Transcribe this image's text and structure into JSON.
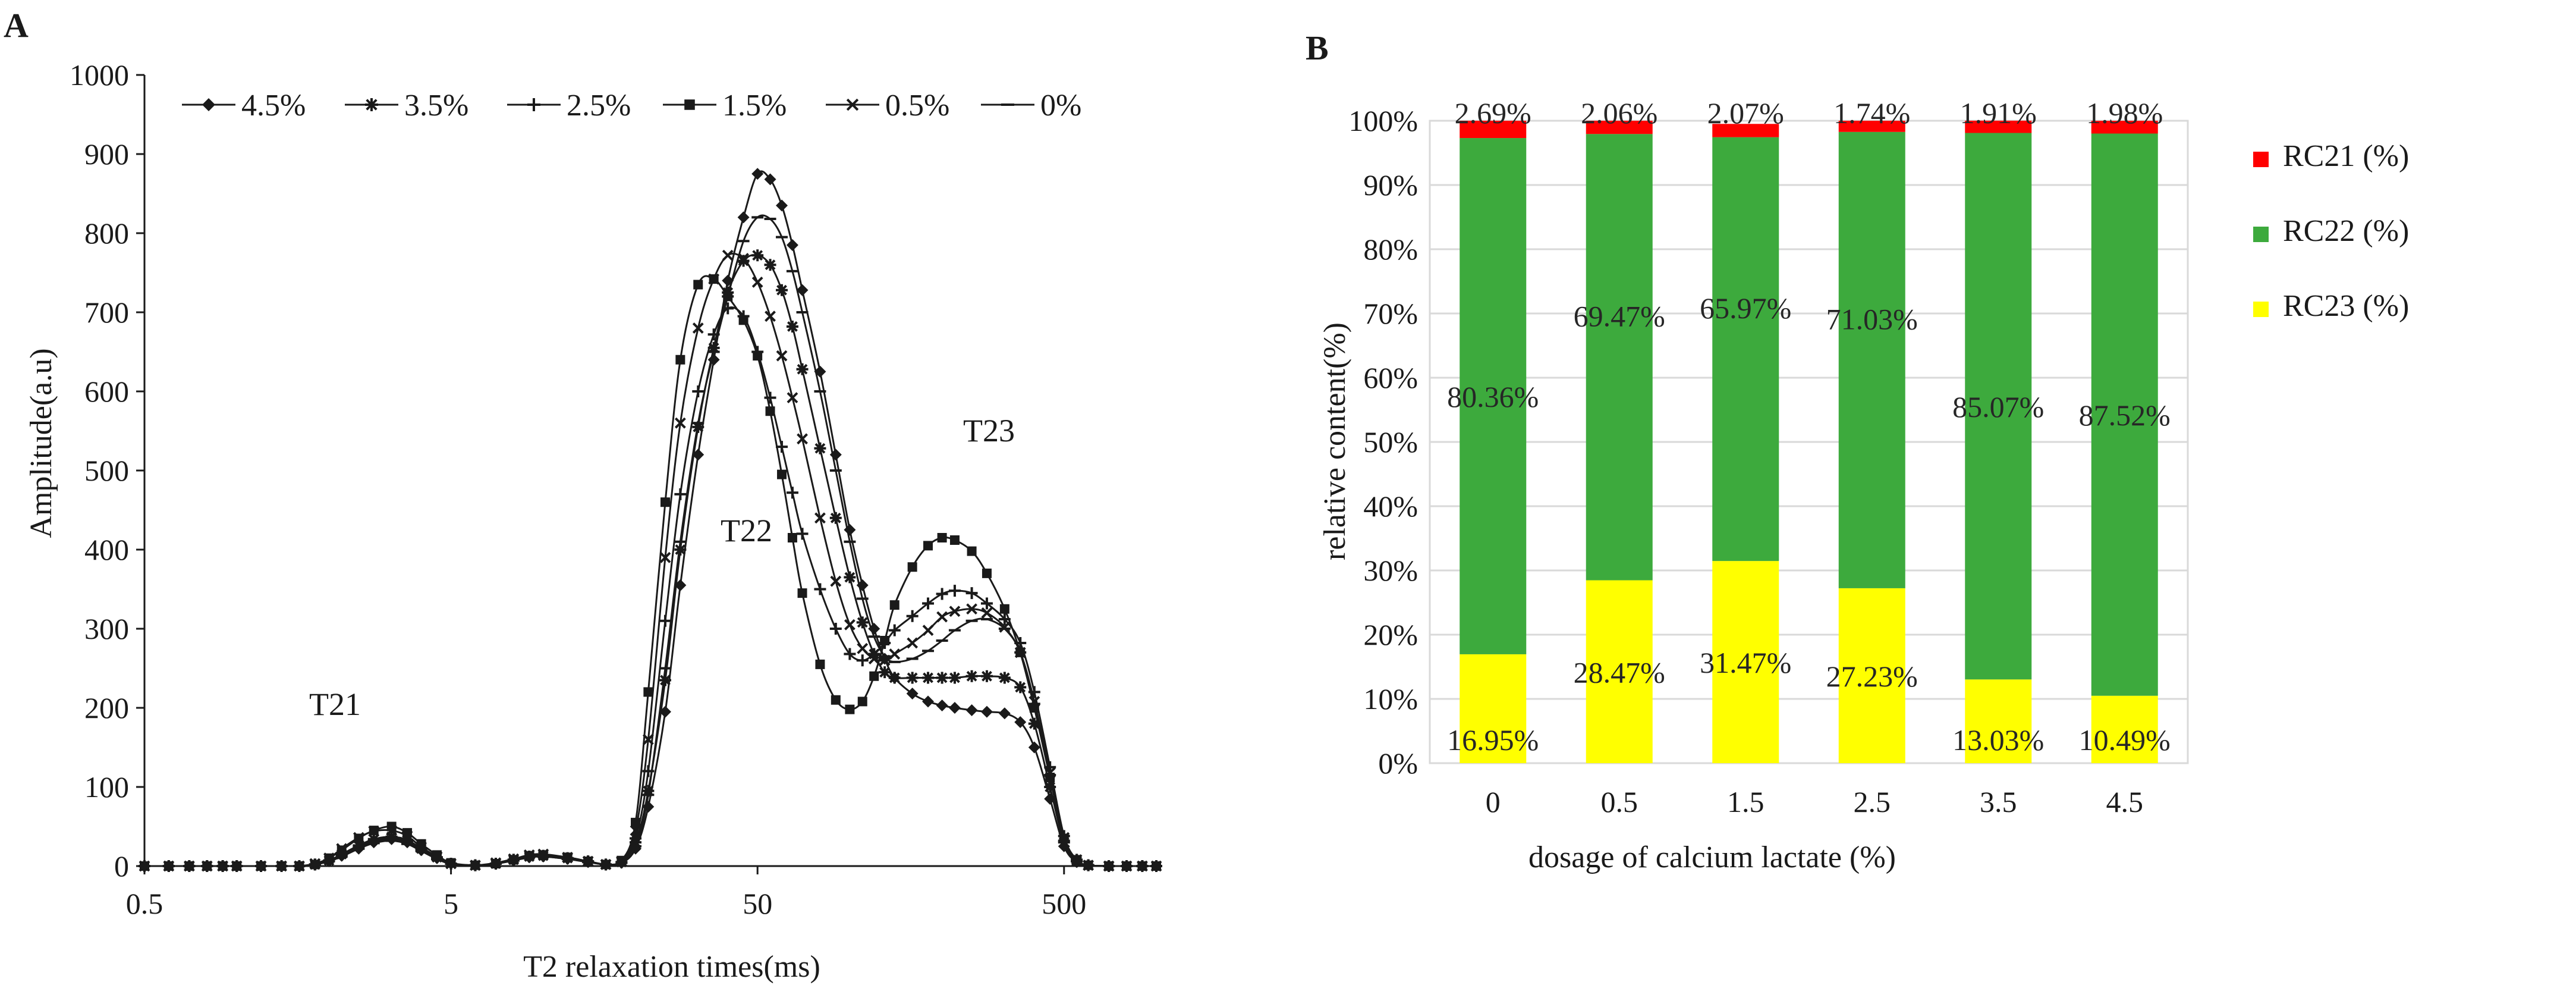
{
  "chart_data": [
    {
      "panel": "A",
      "type": "line",
      "xlabel": "T2 relaxation times(ms)",
      "ylabel": "Amplitude(a.u)",
      "x_scale": "log",
      "xlim": [
        0.5,
        1000
      ],
      "ylim": [
        0,
        1000
      ],
      "x_ticks": [
        "0.5",
        "5",
        "50",
        "500"
      ],
      "y_ticks": [
        "0",
        "100",
        "200",
        "300",
        "400",
        "500",
        "600",
        "700",
        "800",
        "900",
        "1000"
      ],
      "legend_position": "top",
      "grid": false,
      "annotations": [
        "T21",
        "T22",
        "T23"
      ],
      "x": [
        0.5,
        0.6,
        0.7,
        0.8,
        0.9,
        1.0,
        1.2,
        1.4,
        1.6,
        1.8,
        2.0,
        2.2,
        2.5,
        2.8,
        3.2,
        3.6,
        4.0,
        4.5,
        5.0,
        6.0,
        7.0,
        8.0,
        9.0,
        10,
        12,
        14,
        16,
        18,
        20,
        22,
        25,
        28,
        32,
        36,
        40,
        45,
        50,
        55,
        60,
        65,
        70,
        80,
        90,
        100,
        110,
        120,
        130,
        140,
        160,
        180,
        200,
        220,
        250,
        280,
        320,
        360,
        400,
        450,
        500,
        550,
        600,
        700,
        800,
        900,
        1000
      ],
      "series": [
        {
          "name": "4.5%",
          "marker": "diamond",
          "values": [
            0,
            0,
            0,
            0,
            0,
            0,
            0,
            0,
            0,
            2,
            6,
            13,
            22,
            30,
            34,
            30,
            20,
            10,
            3,
            1,
            3,
            7,
            11,
            12,
            9,
            5,
            2,
            4,
            22,
            75,
            195,
            355,
            520,
            640,
            740,
            820,
            875,
            868,
            835,
            785,
            728,
            625,
            520,
            425,
            355,
            300,
            262,
            238,
            218,
            208,
            203,
            200,
            197,
            195,
            193,
            182,
            150,
            85,
            25,
            5,
            1,
            0,
            0,
            0,
            0
          ]
        },
        {
          "name": "3.5%",
          "marker": "star",
          "values": [
            0,
            0,
            0,
            0,
            0,
            0,
            0,
            0,
            0,
            2,
            7,
            15,
            26,
            34,
            37,
            33,
            22,
            11,
            3,
            1,
            3,
            8,
            12,
            13,
            10,
            6,
            2,
            5,
            30,
            95,
            235,
            400,
            555,
            655,
            725,
            765,
            772,
            760,
            728,
            682,
            628,
            528,
            440,
            365,
            308,
            268,
            245,
            238,
            238,
            238,
            238,
            238,
            240,
            240,
            238,
            226,
            180,
            100,
            30,
            6,
            1,
            0,
            0,
            0,
            0
          ]
        },
        {
          "name": "2.5%",
          "marker": "plus",
          "values": [
            0,
            0,
            0,
            0,
            0,
            0,
            0,
            0,
            0,
            2,
            7,
            14,
            24,
            32,
            36,
            32,
            21,
            11,
            3,
            1,
            3,
            8,
            12,
            13,
            10,
            6,
            2,
            5,
            35,
            120,
            310,
            470,
            600,
            672,
            705,
            695,
            650,
            592,
            530,
            472,
            420,
            350,
            300,
            268,
            260,
            268,
            282,
            298,
            316,
            332,
            344,
            348,
            345,
            332,
            312,
            282,
            220,
            125,
            38,
            8,
            1,
            0,
            0,
            0,
            0
          ]
        },
        {
          "name": "1.5%",
          "marker": "square",
          "values": [
            0,
            0,
            0,
            0,
            0,
            0,
            0,
            0,
            0,
            2,
            10,
            20,
            35,
            45,
            50,
            42,
            28,
            14,
            4,
            1,
            3,
            8,
            13,
            14,
            11,
            6,
            2,
            7,
            55,
            220,
            460,
            640,
            735,
            742,
            720,
            690,
            645,
            575,
            495,
            415,
            345,
            255,
            210,
            198,
            208,
            240,
            285,
            330,
            378,
            405,
            415,
            412,
            398,
            370,
            325,
            270,
            200,
            112,
            35,
            8,
            1,
            0,
            0,
            0,
            0
          ]
        },
        {
          "name": "0.5%",
          "marker": "x",
          "values": [
            0,
            0,
            0,
            0,
            0,
            0,
            0,
            0,
            0,
            3,
            10,
            22,
            36,
            44,
            45,
            38,
            24,
            12,
            3,
            1,
            4,
            9,
            14,
            15,
            11,
            6,
            2,
            6,
            45,
            160,
            390,
            560,
            680,
            742,
            772,
            768,
            738,
            695,
            645,
            592,
            540,
            440,
            360,
            305,
            275,
            262,
            260,
            268,
            282,
            298,
            315,
            322,
            325,
            320,
            302,
            270,
            208,
            118,
            36,
            8,
            1,
            0,
            0,
            0,
            0
          ]
        },
        {
          "name": "0%",
          "marker": "dash",
          "values": [
            0,
            0,
            0,
            0,
            0,
            0,
            0,
            0,
            0,
            2,
            6,
            12,
            22,
            29,
            32,
            28,
            19,
            9,
            3,
            1,
            3,
            7,
            11,
            12,
            9,
            5,
            2,
            4,
            25,
            90,
            250,
            410,
            560,
            650,
            720,
            790,
            820,
            818,
            795,
            752,
            700,
            600,
            500,
            410,
            338,
            290,
            265,
            258,
            262,
            272,
            285,
            298,
            310,
            312,
            300,
            270,
            205,
            115,
            32,
            6,
            1,
            0,
            0,
            0,
            0
          ]
        }
      ]
    },
    {
      "panel": "B",
      "type": "bar",
      "stacked": true,
      "xlabel": "dosage of calcium lactate (%)",
      "ylabel": "relative content(%)",
      "ylim": [
        0,
        100
      ],
      "y_ticks": [
        "0%",
        "10%",
        "20%",
        "30%",
        "40%",
        "50%",
        "60%",
        "70%",
        "80%",
        "90%",
        "100%"
      ],
      "categories": [
        "0",
        "0.5",
        "1.5",
        "2.5",
        "3.5",
        "4.5"
      ],
      "legend_position": "right",
      "grid": true,
      "series": [
        {
          "name": "RC23 (%)",
          "color": "#ffff00",
          "values": [
            16.95,
            28.47,
            31.47,
            27.23,
            13.03,
            10.49
          ],
          "labels": [
            "16.95%",
            "28.47%",
            "31.47%",
            "27.23%",
            "13.03%",
            "10.49%"
          ]
        },
        {
          "name": "RC22 (%)",
          "color": "#3daa3d",
          "values": [
            80.36,
            69.47,
            65.97,
            71.03,
            85.07,
            87.52
          ],
          "labels": [
            "80.36%",
            "69.47%",
            "65.97%",
            "71.03%",
            "85.07%",
            "87.52%"
          ]
        },
        {
          "name": "RC21 (%)",
          "color": "#ff0000",
          "values": [
            2.69,
            2.06,
            2.07,
            1.74,
            1.91,
            1.98
          ],
          "labels": [
            "2.69%",
            "2.06%",
            "2.07%",
            "1.74%",
            "1.91%",
            "1.98%"
          ]
        }
      ]
    }
  ]
}
